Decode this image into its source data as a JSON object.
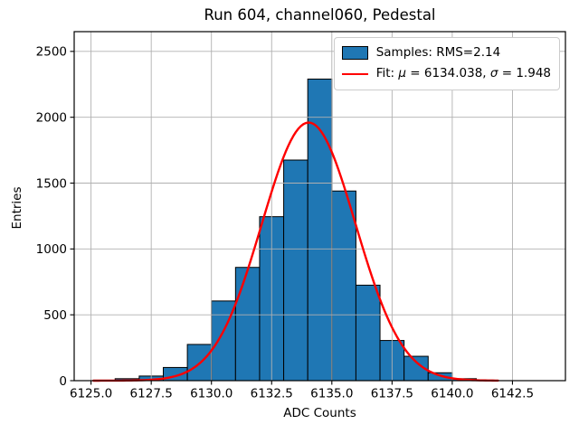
{
  "title": "Run 604, channel060, Pedestal",
  "legend": {
    "samples_label": "Samples: RMS=2.14",
    "fit": {
      "prefix": "Fit: ",
      "mu_symbol": "μ",
      "mu_text": " = 6134.038, ",
      "sigma_symbol": "σ",
      "sigma_text": " = 1.948"
    }
  },
  "chart_data": {
    "type": "bar",
    "subtype": "histogram-with-gaussian-fit",
    "title": "Run 604, channel060, Pedestal",
    "xlabel": "ADC Counts",
    "ylabel": "Entries",
    "xlim": [
      6124.3,
      6144.7
    ],
    "ylim": [
      0,
      2650
    ],
    "grid": true,
    "grid_color": "#b0b0b0",
    "legend_position": "upper right",
    "bin_edges": [
      6126,
      6127,
      6128,
      6129,
      6130,
      6131,
      6132,
      6133,
      6134,
      6135,
      6136,
      6137,
      6138,
      6139,
      6140,
      6141
    ],
    "counts": [
      15,
      35,
      100,
      275,
      605,
      860,
      1245,
      1675,
      2290,
      1440,
      725,
      305,
      185,
      60,
      15
    ],
    "series": [
      {
        "name": "Samples: RMS=2.14",
        "type": "histogram",
        "rms": 2.14,
        "fill_color": "#1f77b4",
        "edge_color": "#000000"
      },
      {
        "name": "Fit: μ = 6134.038, σ = 1.948",
        "type": "gaussian-fit",
        "mu": 6134.038,
        "sigma": 1.948,
        "peak_amplitude": 1960,
        "x_range": [
          6125.1,
          6141.9
        ],
        "color": "#ff0000"
      }
    ],
    "x_ticks": [
      {
        "value": 6125.0,
        "label": "6125.0"
      },
      {
        "value": 6127.5,
        "label": "6127.5"
      },
      {
        "value": 6130.0,
        "label": "6130.0"
      },
      {
        "value": 6132.5,
        "label": "6132.5"
      },
      {
        "value": 6135.0,
        "label": "6135.0"
      },
      {
        "value": 6137.5,
        "label": "6137.5"
      },
      {
        "value": 6140.0,
        "label": "6140.0"
      },
      {
        "value": 6142.5,
        "label": "6142.5"
      }
    ],
    "y_ticks": [
      {
        "value": 0,
        "label": "0"
      },
      {
        "value": 500,
        "label": "500"
      },
      {
        "value": 1000,
        "label": "1000"
      },
      {
        "value": 1500,
        "label": "1500"
      },
      {
        "value": 2000,
        "label": "2000"
      },
      {
        "value": 2500,
        "label": "2500"
      }
    ]
  }
}
